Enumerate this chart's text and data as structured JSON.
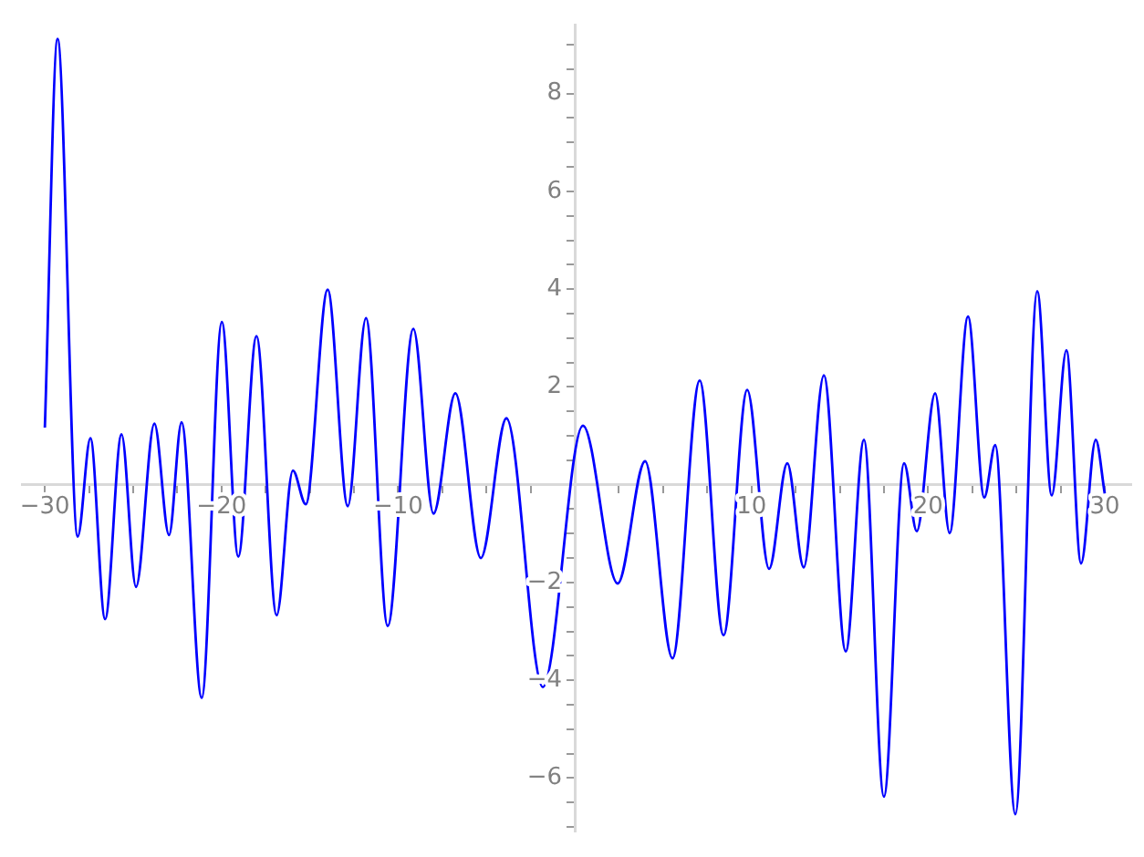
{
  "chart_data": {
    "type": "line",
    "marker": "none",
    "line_style": "solid",
    "x": [
      -30,
      -29.28,
      -28.14,
      -27.42,
      -26.59,
      -25.66,
      -24.84,
      -23.8,
      -22.97,
      -22.26,
      -21.12,
      -19.98,
      -19.05,
      -18.02,
      -16.88,
      -15.96,
      -15.23,
      -13.99,
      -12.85,
      -11.82,
      -10.59,
      -9.14,
      -8.0,
      -6.76,
      -5.32,
      -3.87,
      -1.81,
      0.46,
      2.43,
      3.98,
      5.53,
      7.07,
      8.42,
      9.76,
      11.0,
      12.03,
      12.96,
      14.1,
      15.34,
      16.37,
      17.5,
      18.64,
      19.36,
      20.4,
      21.22,
      22.26,
      23.18,
      23.8,
      24.94,
      26.18,
      27.0,
      27.83,
      28.66,
      29.49,
      30
    ],
    "series": [
      {
        "color": "#0000ff",
        "values": [
          1.17,
          9.12,
          -1.06,
          0.95,
          -2.75,
          1.03,
          -2.09,
          1.25,
          -1.03,
          1.28,
          -4.36,
          3.33,
          -1.47,
          3.04,
          -2.67,
          0.29,
          -0.4,
          3.99,
          -0.44,
          3.41,
          -2.89,
          3.19,
          -0.59,
          1.87,
          -1.5,
          1.36,
          -4.14,
          1.21,
          -2.02,
          0.48,
          -3.55,
          2.13,
          -3.08,
          1.94,
          -1.72,
          0.44,
          -1.69,
          2.24,
          -3.41,
          0.92,
          -6.38,
          0.44,
          -0.95,
          1.87,
          -0.99,
          3.44,
          -0.26,
          0.81,
          -6.74,
          3.96,
          -0.22,
          2.75,
          -1.61,
          0.92,
          -0.18
        ]
      }
    ],
    "xlim": [
      -31.3,
      31.5
    ],
    "ylim": [
      -7.1,
      9.4
    ],
    "xticks": [
      {
        "value": -30,
        "label": "−30"
      },
      {
        "value": -27.5,
        "label": null
      },
      {
        "value": -25,
        "label": null
      },
      {
        "value": -22.5,
        "label": null
      },
      {
        "value": -20,
        "label": "−20"
      },
      {
        "value": -17.5,
        "label": null
      },
      {
        "value": -15,
        "label": null
      },
      {
        "value": -12.5,
        "label": null
      },
      {
        "value": -10,
        "label": "−10"
      },
      {
        "value": -7.5,
        "label": null
      },
      {
        "value": -5,
        "label": null
      },
      {
        "value": -2.5,
        "label": null
      },
      {
        "value": 2.5,
        "label": null
      },
      {
        "value": 5,
        "label": null
      },
      {
        "value": 7.5,
        "label": null
      },
      {
        "value": 10,
        "label": "10"
      },
      {
        "value": 12.5,
        "label": null
      },
      {
        "value": 15,
        "label": null
      },
      {
        "value": 17.5,
        "label": null
      },
      {
        "value": 20,
        "label": "20"
      },
      {
        "value": 22.5,
        "label": null
      },
      {
        "value": 25,
        "label": null
      },
      {
        "value": 27.5,
        "label": null
      },
      {
        "value": 30,
        "label": "30"
      }
    ],
    "yticks": [
      {
        "value": -7,
        "label": null
      },
      {
        "value": -6.5,
        "label": null
      },
      {
        "value": -6,
        "label": "−6"
      },
      {
        "value": -5.5,
        "label": null
      },
      {
        "value": -5,
        "label": null
      },
      {
        "value": -4.5,
        "label": null
      },
      {
        "value": -4,
        "label": "−4"
      },
      {
        "value": -3.5,
        "label": null
      },
      {
        "value": -3,
        "label": null
      },
      {
        "value": -2.5,
        "label": null
      },
      {
        "value": -2,
        "label": "−2"
      },
      {
        "value": -1.5,
        "label": null
      },
      {
        "value": -1,
        "label": null
      },
      {
        "value": -0.5,
        "label": null
      },
      {
        "value": 0.5,
        "label": null
      },
      {
        "value": 1,
        "label": null
      },
      {
        "value": 1.5,
        "label": null
      },
      {
        "value": 2,
        "label": "2"
      },
      {
        "value": 2.5,
        "label": null
      },
      {
        "value": 3,
        "label": null
      },
      {
        "value": 3.5,
        "label": null
      },
      {
        "value": 4,
        "label": "4"
      },
      {
        "value": 4.5,
        "label": null
      },
      {
        "value": 5,
        "label": null
      },
      {
        "value": 5.5,
        "label": null
      },
      {
        "value": 6,
        "label": "6"
      },
      {
        "value": 6.5,
        "label": null
      },
      {
        "value": 7,
        "label": null
      },
      {
        "value": 7.5,
        "label": null
      },
      {
        "value": 8,
        "label": "8"
      },
      {
        "value": 8.5,
        "label": null
      },
      {
        "value": 9,
        "label": null
      }
    ]
  }
}
